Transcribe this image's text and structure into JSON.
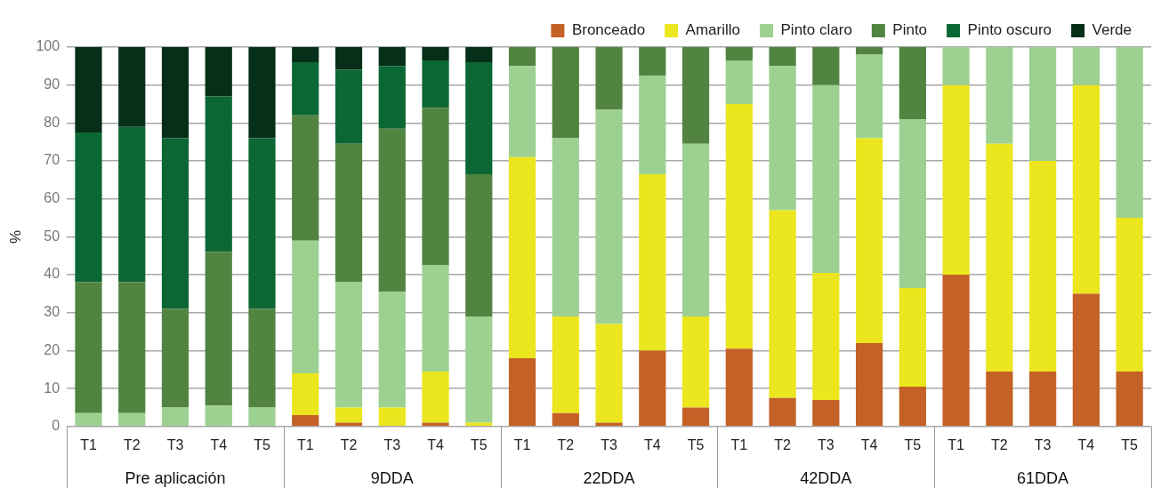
{
  "chart_data": {
    "type": "bar",
    "stacked": true,
    "ylabel": "%",
    "categories": [
      "T1",
      "T2",
      "T3",
      "T4",
      "T5",
      "T1",
      "T2",
      "T3",
      "T4",
      "T5",
      "T1",
      "T2",
      "T3",
      "T4",
      "T5",
      "T1",
      "T2",
      "T3",
      "T4",
      "T5",
      "T1",
      "T2",
      "T3",
      "T4",
      "T5"
    ],
    "annotations": [
      "Pre aplicación",
      "9DDA",
      "22DDA",
      "42DDA",
      "61DDA"
    ],
    "series": [
      {
        "name": "Bronceado",
        "color": "#c46127",
        "values": [
          0,
          0,
          0,
          0,
          0,
          3,
          1,
          0,
          1,
          0,
          18,
          3.5,
          1,
          20,
          5,
          20.5,
          7.5,
          7,
          22,
          10.5,
          40,
          14.5,
          14.5,
          35,
          14.5
        ]
      },
      {
        "name": "Amarillo",
        "color": "#ebe61e",
        "values": [
          0,
          0,
          0,
          0,
          0,
          11,
          4,
          5,
          13.5,
          1,
          53,
          25.5,
          26,
          46.5,
          24,
          64.5,
          49.5,
          33.5,
          54,
          26,
          50,
          60,
          55.5,
          55,
          40.5
        ]
      },
      {
        "name": "Pinto claro",
        "color": "#9dd191",
        "values": [
          3.5,
          3.5,
          5,
          5.5,
          5,
          35,
          33,
          30.5,
          28,
          28,
          24,
          47,
          56.5,
          26,
          45.5,
          11.5,
          38,
          49.5,
          22,
          44.5,
          10,
          25.5,
          30,
          10,
          45
        ]
      },
      {
        "name": "Pinto",
        "color": "#528441",
        "values": [
          34.5,
          34.5,
          26,
          40.5,
          26,
          33,
          36.5,
          43,
          41.5,
          37.5,
          5,
          24,
          16.5,
          7.5,
          25.5,
          3.5,
          5,
          10,
          2,
          19,
          0,
          0,
          0,
          0,
          0
        ]
      },
      {
        "name": "Pinto oscuro",
        "color": "#0b6734",
        "values": [
          39.5,
          41,
          45,
          41,
          45,
          14,
          19.5,
          16.5,
          12.5,
          29.5,
          0,
          0,
          0,
          0,
          0,
          0,
          0,
          0,
          0,
          0,
          0,
          0,
          0,
          0,
          0
        ]
      },
      {
        "name": "Verde",
        "color": "#062f19",
        "values": [
          22.5,
          21,
          24,
          13,
          24,
          4,
          6,
          5,
          3.5,
          4,
          0,
          0,
          0,
          0,
          0,
          0,
          0,
          0,
          0,
          0,
          0,
          0,
          0,
          0,
          0
        ]
      }
    ],
    "ylim": [
      0,
      100
    ],
    "yticks": [
      0,
      10,
      20,
      30,
      40,
      50,
      60,
      70,
      80,
      90,
      100
    ],
    "grid": "y",
    "legend": "top right"
  }
}
